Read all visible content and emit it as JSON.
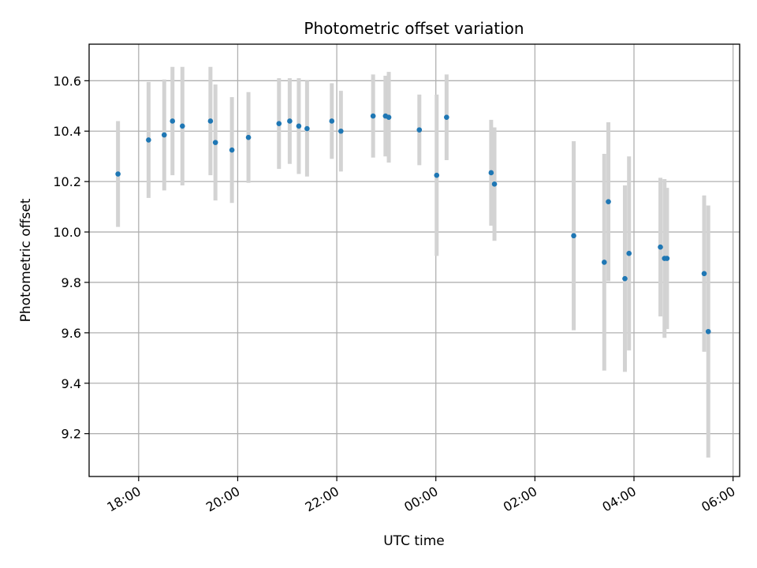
{
  "chart_data": {
    "type": "scatter",
    "title": "Photometric offset variation",
    "xlabel": "UTC time",
    "ylabel": "Photometric offset",
    "x_axis_kind": "time",
    "xlim": [
      "17:00",
      "30:08"
    ],
    "ylim": [
      9.03,
      10.745
    ],
    "grid": true,
    "x_ticks": [
      {
        "t": "18:00",
        "label": "18:00"
      },
      {
        "t": "20:00",
        "label": "20:00"
      },
      {
        "t": "22:00",
        "label": "22:00"
      },
      {
        "t": "24:00",
        "label": "00:00"
      },
      {
        "t": "26:00",
        "label": "02:00"
      },
      {
        "t": "28:00",
        "label": "04:00"
      },
      {
        "t": "30:00",
        "label": "06:00"
      }
    ],
    "y_ticks": [
      9.2,
      9.4,
      9.6,
      9.8,
      10.0,
      10.2,
      10.4,
      10.6
    ],
    "colors": {
      "point": "#1f77b4",
      "errorbar": "#d3d3d3",
      "grid": "#b0b0b0"
    },
    "points": [
      {
        "t": "17:35",
        "y": 10.23,
        "err": 0.21
      },
      {
        "t": "18:12",
        "y": 10.365,
        "err": 0.23
      },
      {
        "t": "18:31",
        "y": 10.385,
        "err": 0.22
      },
      {
        "t": "18:41",
        "y": 10.44,
        "err": 0.215
      },
      {
        "t": "18:53",
        "y": 10.42,
        "err": 0.235
      },
      {
        "t": "19:27",
        "y": 10.44,
        "err": 0.215
      },
      {
        "t": "19:33",
        "y": 10.355,
        "err": 0.23
      },
      {
        "t": "19:53",
        "y": 10.325,
        "err": 0.21
      },
      {
        "t": "20:13",
        "y": 10.375,
        "err": 0.18
      },
      {
        "t": "20:50",
        "y": 10.43,
        "err": 0.18
      },
      {
        "t": "21:03",
        "y": 10.44,
        "err": 0.17
      },
      {
        "t": "21:14",
        "y": 10.42,
        "err": 0.19
      },
      {
        "t": "21:24",
        "y": 10.41,
        "err": 0.19
      },
      {
        "t": "21:54",
        "y": 10.44,
        "err": 0.15
      },
      {
        "t": "22:05",
        "y": 10.4,
        "err": 0.16
      },
      {
        "t": "22:44",
        "y": 10.46,
        "err": 0.165
      },
      {
        "t": "22:59",
        "y": 10.46,
        "err": 0.16
      },
      {
        "t": "23:03",
        "y": 10.455,
        "err": 0.18
      },
      {
        "t": "23:40",
        "y": 10.405,
        "err": 0.14
      },
      {
        "t": "24:01",
        "y": 10.225,
        "err": 0.32
      },
      {
        "t": "24:13",
        "y": 10.455,
        "err": 0.17
      },
      {
        "t": "25:07",
        "y": 10.235,
        "err": 0.21
      },
      {
        "t": "25:11",
        "y": 10.19,
        "err": 0.225
      },
      {
        "t": "26:47",
        "y": 9.985,
        "err": 0.375
      },
      {
        "t": "27:24",
        "y": 9.88,
        "err": 0.43
      },
      {
        "t": "27:29",
        "y": 10.12,
        "err": 0.315
      },
      {
        "t": "27:49",
        "y": 9.815,
        "err": 0.37
      },
      {
        "t": "27:54",
        "y": 9.915,
        "err": 0.385
      },
      {
        "t": "28:32",
        "y": 9.94,
        "err": 0.275
      },
      {
        "t": "28:37",
        "y": 9.895,
        "err": 0.315
      },
      {
        "t": "28:40",
        "y": 9.895,
        "err": 0.28
      },
      {
        "t": "29:25",
        "y": 9.835,
        "err": 0.31
      },
      {
        "t": "29:30",
        "y": 9.605,
        "err": 0.5
      }
    ]
  }
}
